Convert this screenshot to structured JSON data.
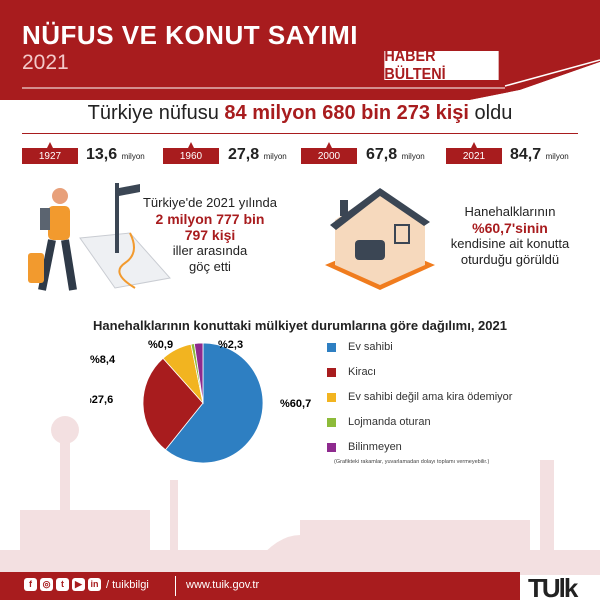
{
  "header": {
    "title": "NÜFUS VE KONUT SAYIMI",
    "year": "2021",
    "badge": "HABER BÜLTENİ"
  },
  "headline": {
    "pre": "Türkiye nüfusu ",
    "highlight": "84 milyon 680 bin 273 kişi",
    "post": " oldu"
  },
  "population": [
    {
      "year": "1927",
      "value": "13,6",
      "unit": "milyon"
    },
    {
      "year": "1960",
      "value": "27,8",
      "unit": "milyon"
    },
    {
      "year": "2000",
      "value": "67,8",
      "unit": "milyon"
    },
    {
      "year": "2021",
      "value": "84,7",
      "unit": "milyon"
    }
  ],
  "migration": {
    "line1": "Türkiye'de 2021 yılında",
    "highlight1": "2 milyon 777 bin",
    "highlight2": "797 kişi",
    "line2": "iller arasında",
    "line3": "göç etti"
  },
  "ownership": {
    "line1": "Hanehalklarının",
    "highlight": "%60,7'sinin",
    "line2": "kendisine ait konutta",
    "line3": "oturduğu görüldü"
  },
  "chart_data": {
    "type": "pie",
    "title": "Hanehalklarının konuttaki mülkiyet durumlarına göre dağılımı, 2021",
    "categories": [
      "Ev sahibi",
      "Kiracı",
      "Ev sahibi değil ama kira ödemiyor",
      "Lojmanda oturan",
      "Bilinmeyen"
    ],
    "values": [
      60.7,
      27.6,
      8.4,
      0.9,
      2.3
    ],
    "labels": [
      "%60,7",
      "%27,6",
      "%8,4",
      "%0,9",
      "%2,3"
    ],
    "colors": [
      "#2e7fc2",
      "#a81c1e",
      "#f2b420",
      "#8dbb3a",
      "#8e2a8e"
    ],
    "legend": "right",
    "note": "(Grafikteki rakamlar, yuvarlamadan dolayı toplamı vermeyebilir.)"
  },
  "footer": {
    "handle": "/ tuikbilgi",
    "url": "www.tuik.gov.tr",
    "logo": "TÜİK",
    "social_icons": [
      "facebook-icon",
      "instagram-icon",
      "twitter-icon",
      "youtube-icon",
      "linkedin-icon"
    ]
  },
  "colors": {
    "brand": "#a81c1e"
  }
}
